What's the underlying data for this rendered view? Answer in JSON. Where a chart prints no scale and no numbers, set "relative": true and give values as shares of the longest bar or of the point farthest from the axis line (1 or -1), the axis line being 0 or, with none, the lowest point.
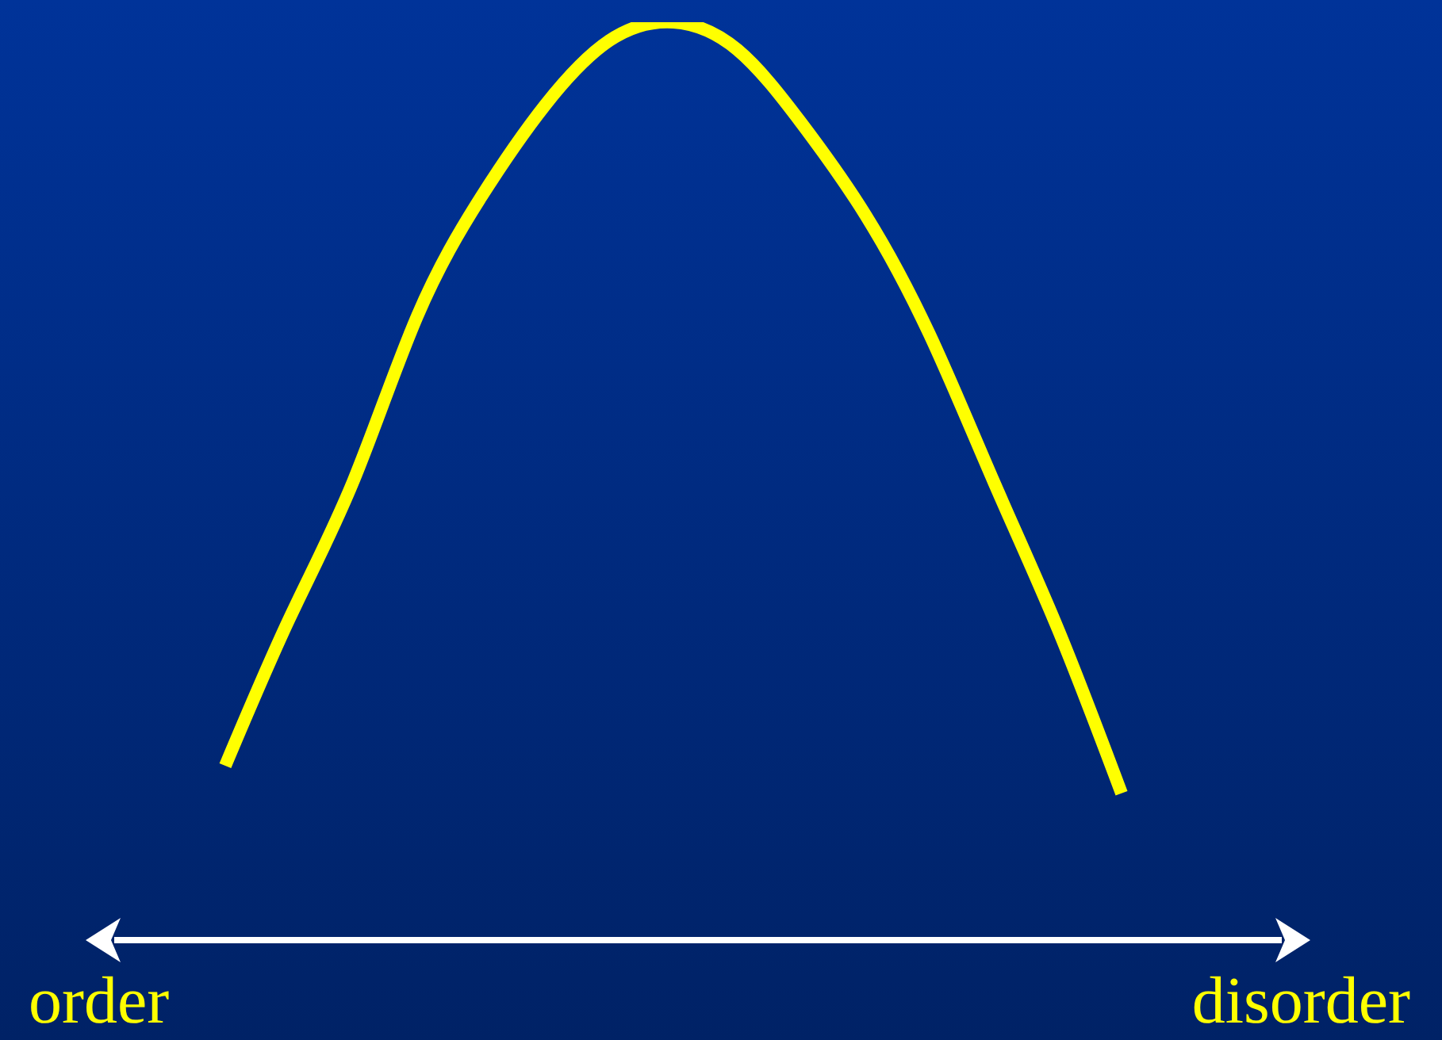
{
  "chart_data": {
    "type": "line",
    "relative": true,
    "categories": [
      null,
      null,
      null,
      null,
      null,
      null,
      null,
      null,
      null,
      null,
      null,
      null,
      null,
      null,
      null
    ],
    "series": [
      {
        "color": "#ffff00",
        "values": [
          0.19,
          0.35,
          0.5,
          0.68,
          0.81,
          0.91,
          0.98,
          1.0,
          0.97,
          0.89,
          0.79,
          0.66,
          0.5,
          0.34,
          0.16
        ]
      }
    ],
    "marker": "none",
    "line_style": "solid",
    "grid": false,
    "legend": false,
    "annotations": [
      "order",
      "disorder"
    ]
  }
}
